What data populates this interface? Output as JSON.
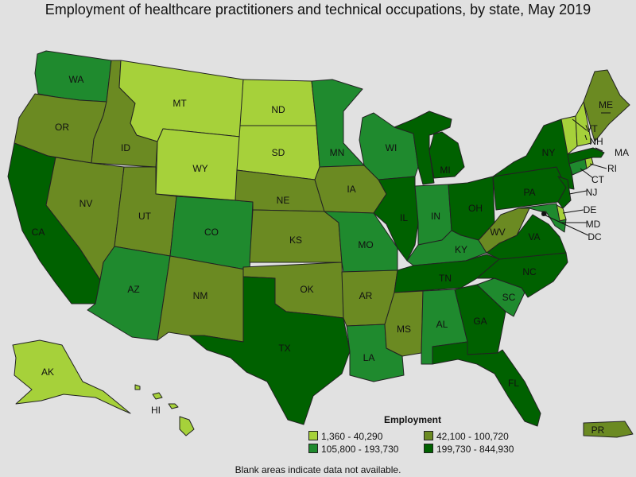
{
  "title": "Employment of healthcare practitioners and technical occupations, by state, May 2019",
  "legend": {
    "title": "Employment",
    "bins": [
      {
        "key": "c1",
        "label": "1,360 - 40,290",
        "color": "#a6d13a"
      },
      {
        "key": "c2",
        "label": "42,100 - 100,720",
        "color": "#6b8a22"
      },
      {
        "key": "c3",
        "label": "105,800 - 193,730",
        "color": "#1f8a2e"
      },
      {
        "key": "c4",
        "label": "199,730 - 844,930",
        "color": "#006100"
      }
    ]
  },
  "note": "Blank areas indicate data not available.",
  "states": [
    {
      "abbr": "WA",
      "cls": "c3"
    },
    {
      "abbr": "OR",
      "cls": "c2"
    },
    {
      "abbr": "CA",
      "cls": "c4"
    },
    {
      "abbr": "ID",
      "cls": "c2"
    },
    {
      "abbr": "NV",
      "cls": "c2"
    },
    {
      "abbr": "MT",
      "cls": "c1"
    },
    {
      "abbr": "WY",
      "cls": "c1"
    },
    {
      "abbr": "UT",
      "cls": "c2"
    },
    {
      "abbr": "AZ",
      "cls": "c3"
    },
    {
      "abbr": "CO",
      "cls": "c3"
    },
    {
      "abbr": "NM",
      "cls": "c2"
    },
    {
      "abbr": "ND",
      "cls": "c1"
    },
    {
      "abbr": "SD",
      "cls": "c1"
    },
    {
      "abbr": "NE",
      "cls": "c2"
    },
    {
      "abbr": "KS",
      "cls": "c2"
    },
    {
      "abbr": "OK",
      "cls": "c2"
    },
    {
      "abbr": "TX",
      "cls": "c4"
    },
    {
      "abbr": "MN",
      "cls": "c3"
    },
    {
      "abbr": "IA",
      "cls": "c2"
    },
    {
      "abbr": "MO",
      "cls": "c3"
    },
    {
      "abbr": "AR",
      "cls": "c2"
    },
    {
      "abbr": "LA",
      "cls": "c3"
    },
    {
      "abbr": "WI",
      "cls": "c3"
    },
    {
      "abbr": "IL",
      "cls": "c4"
    },
    {
      "abbr": "MI",
      "cls": "c4"
    },
    {
      "abbr": "IN",
      "cls": "c3"
    },
    {
      "abbr": "OH",
      "cls": "c4"
    },
    {
      "abbr": "KY",
      "cls": "c3"
    },
    {
      "abbr": "TN",
      "cls": "c4"
    },
    {
      "abbr": "MS",
      "cls": "c2"
    },
    {
      "abbr": "AL",
      "cls": "c3"
    },
    {
      "abbr": "GA",
      "cls": "c4"
    },
    {
      "abbr": "FL",
      "cls": "c4"
    },
    {
      "abbr": "SC",
      "cls": "c3"
    },
    {
      "abbr": "NC",
      "cls": "c4"
    },
    {
      "abbr": "VA",
      "cls": "c4"
    },
    {
      "abbr": "WV",
      "cls": "c2"
    },
    {
      "abbr": "PA",
      "cls": "c4"
    },
    {
      "abbr": "NY",
      "cls": "c4"
    },
    {
      "abbr": "NJ",
      "cls": "c4"
    },
    {
      "abbr": "DE",
      "cls": "c1"
    },
    {
      "abbr": "MD",
      "cls": "c3"
    },
    {
      "abbr": "DC",
      "cls": "c2"
    },
    {
      "abbr": "CT",
      "cls": "c3"
    },
    {
      "abbr": "RI",
      "cls": "c1"
    },
    {
      "abbr": "MA",
      "cls": "c4"
    },
    {
      "abbr": "VT",
      "cls": "c1"
    },
    {
      "abbr": "NH",
      "cls": "c1"
    },
    {
      "abbr": "ME",
      "cls": "c2"
    },
    {
      "abbr": "AK",
      "cls": "c1"
    },
    {
      "abbr": "HI",
      "cls": "c1"
    },
    {
      "abbr": "PR",
      "cls": "c2"
    }
  ]
}
